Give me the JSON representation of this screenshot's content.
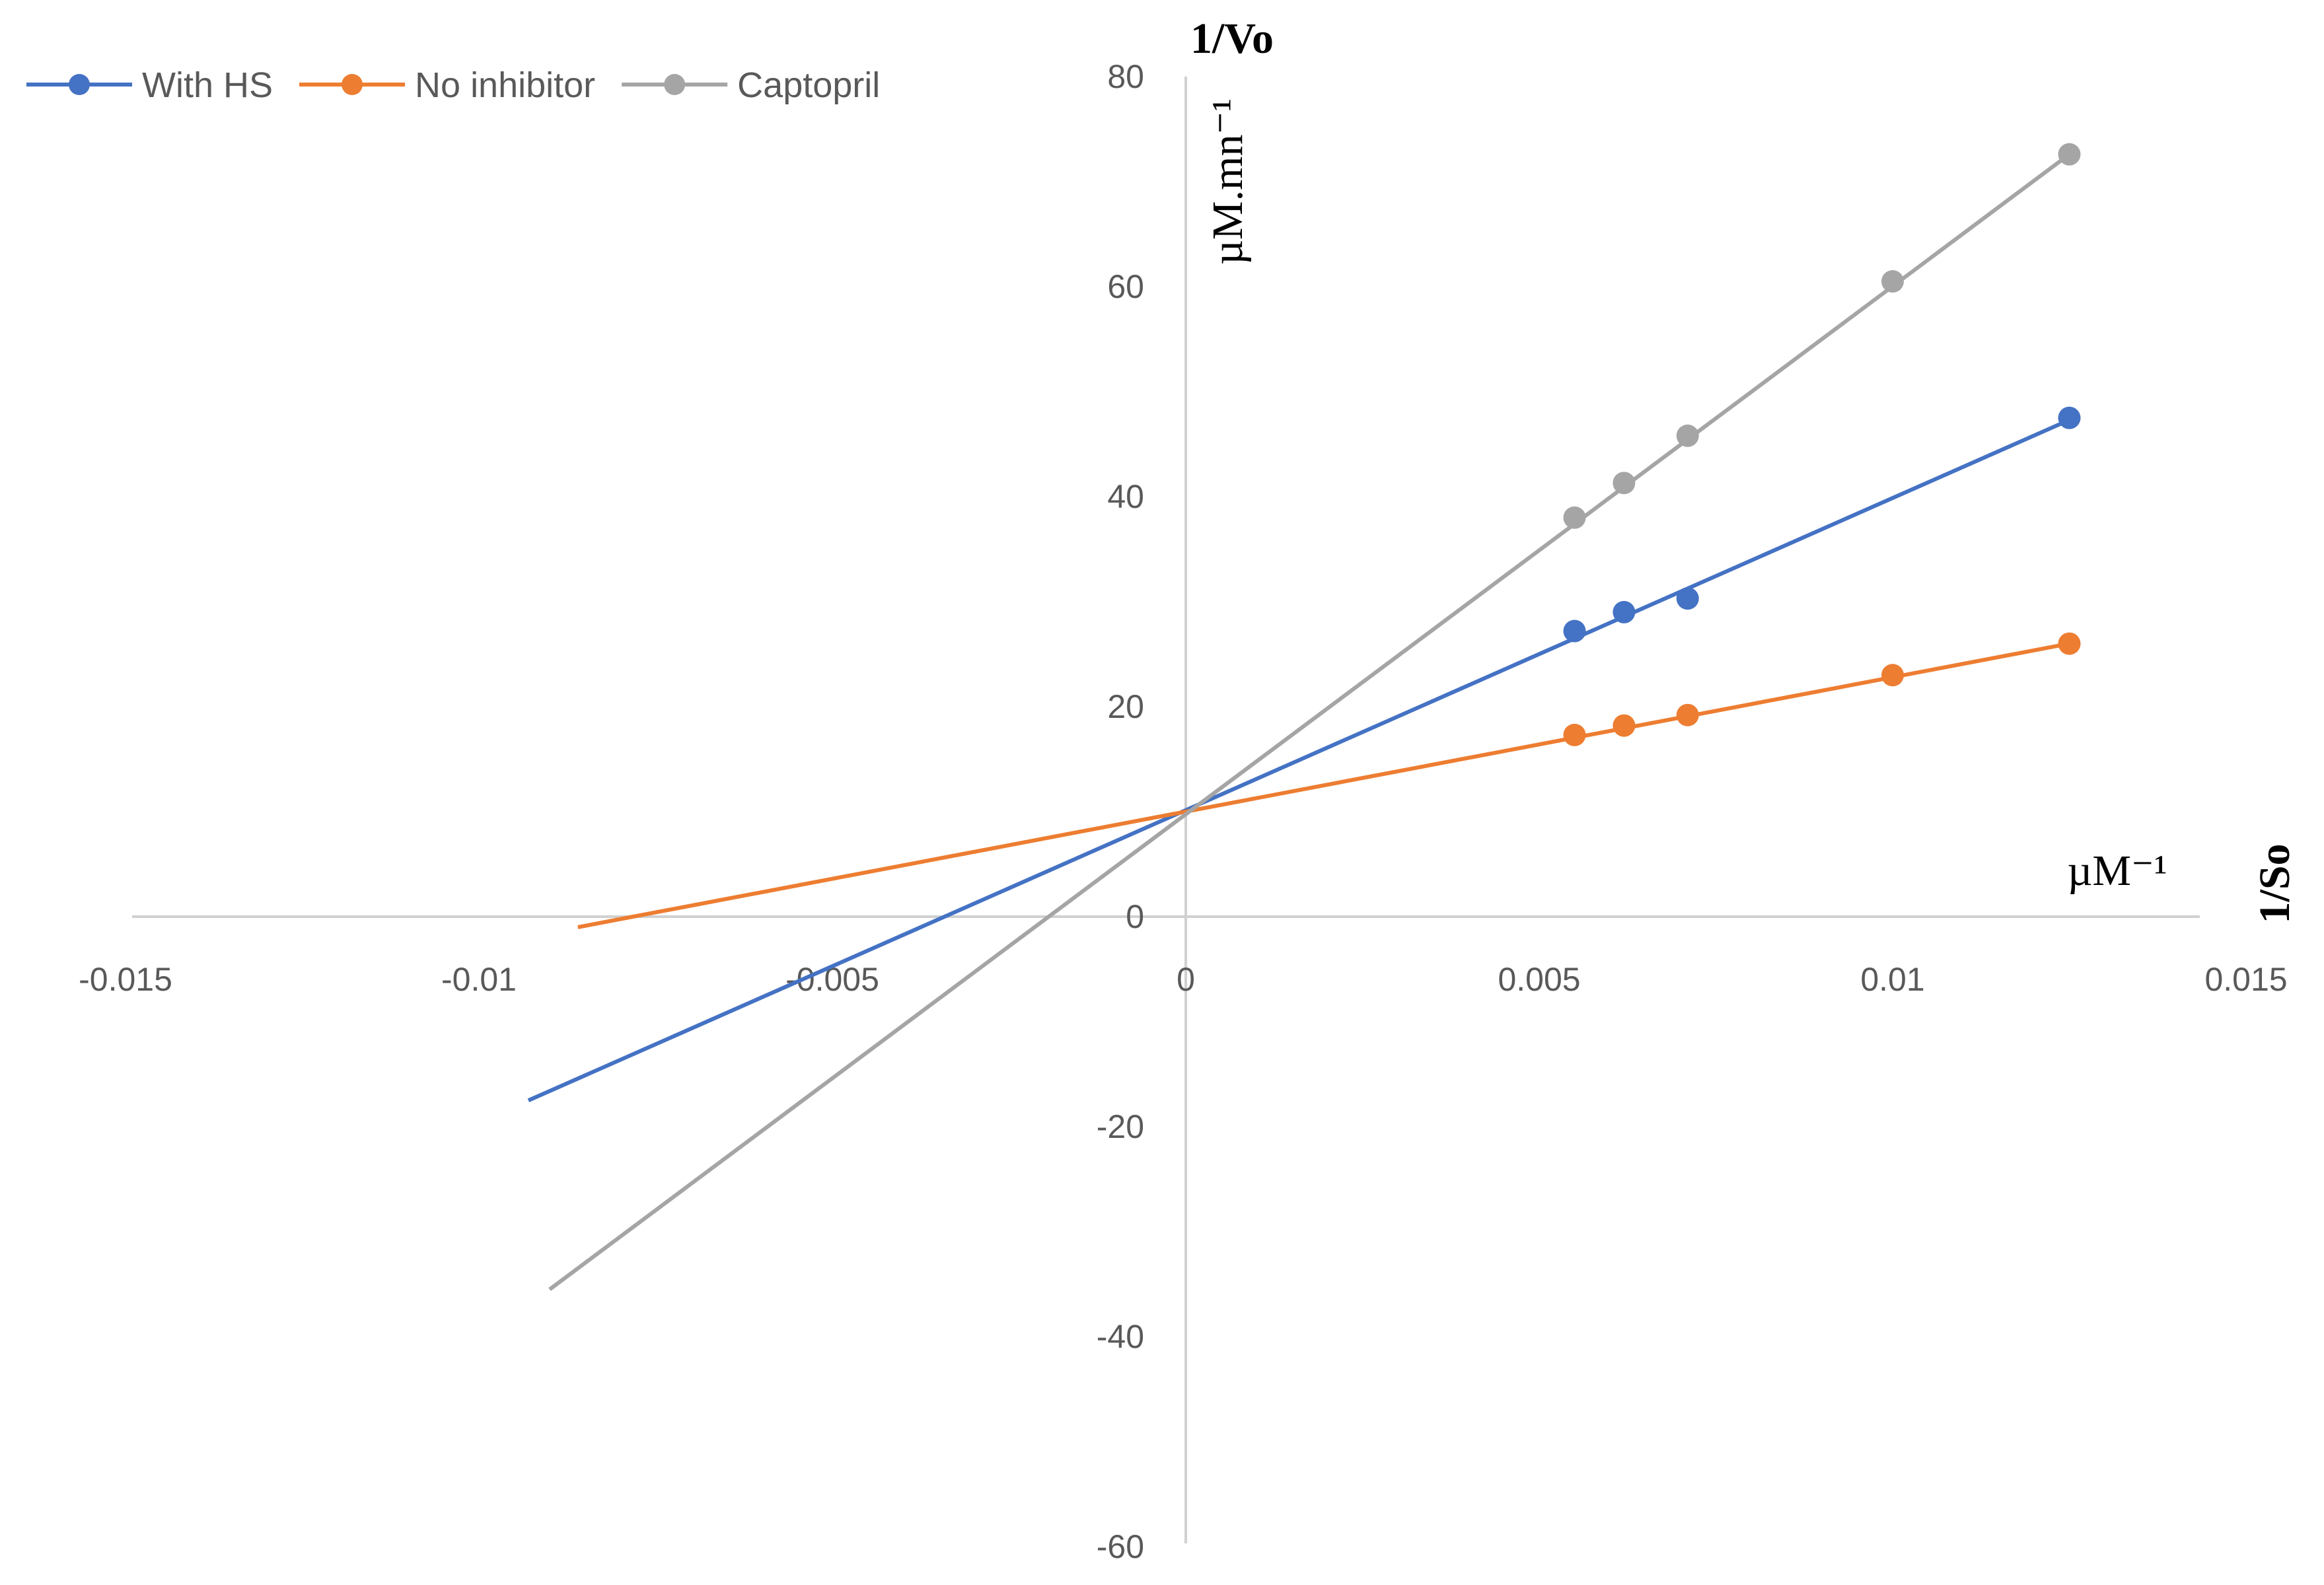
{
  "chart_data": {
    "type": "line",
    "x_axis": {
      "title": "1/So",
      "unit": "µM⁻¹",
      "range": [
        -0.015,
        0.015
      ],
      "ticks": [
        {
          "value": -0.015,
          "label": "-0.015"
        },
        {
          "value": -0.01,
          "label": "-0.01"
        },
        {
          "value": -0.005,
          "label": "-0.005"
        },
        {
          "value": 0,
          "label": "0"
        },
        {
          "value": 0.005,
          "label": "0.005"
        },
        {
          "value": 0.01,
          "label": "0.01"
        },
        {
          "value": 0.015,
          "label": "0.015"
        }
      ]
    },
    "y_axis": {
      "title": "1/Vo",
      "unit": "µM.mn⁻¹",
      "range": [
        -60,
        80
      ],
      "ticks": [
        {
          "value": 80,
          "label": "80"
        },
        {
          "value": 60,
          "label": "60"
        },
        {
          "value": 40,
          "label": "40"
        },
        {
          "value": 20,
          "label": "20"
        },
        {
          "value": 0,
          "label": "0"
        },
        {
          "value": -20,
          "label": "-20"
        },
        {
          "value": -40,
          "label": "-40"
        },
        {
          "value": -60,
          "label": "-60"
        }
      ]
    },
    "grid": false,
    "legend_position": "top-left",
    "series": [
      {
        "name": "With HS",
        "color": "#4472C4",
        "points": [
          [
            0.0055,
            27.2
          ],
          [
            0.0062,
            29.0
          ],
          [
            0.0071,
            30.3
          ],
          [
            0.0125,
            47.5
          ]
        ],
        "trend_line": [
          [
            -0.0093,
            -17.5
          ],
          [
            0.0125,
            47.3
          ]
        ]
      },
      {
        "name": "No inhibitor",
        "color": "#ED7D31",
        "points": [
          [
            0.0055,
            17.3
          ],
          [
            0.0062,
            18.2
          ],
          [
            0.0071,
            19.2
          ],
          [
            0.01,
            23.0
          ],
          [
            0.0125,
            26.0
          ]
        ],
        "trend_line": [
          [
            -0.0086,
            -1.0
          ],
          [
            0.0125,
            26.0
          ]
        ]
      },
      {
        "name": "Captopril",
        "color": "#A5A5A5",
        "points": [
          [
            0.0055,
            38.0
          ],
          [
            0.0062,
            41.3
          ],
          [
            0.0071,
            45.8
          ],
          [
            0.01,
            60.5
          ],
          [
            0.0125,
            72.6
          ]
        ],
        "trend_line": [
          [
            -0.009,
            -35.5
          ],
          [
            0.0125,
            72.6
          ]
        ]
      }
    ]
  }
}
